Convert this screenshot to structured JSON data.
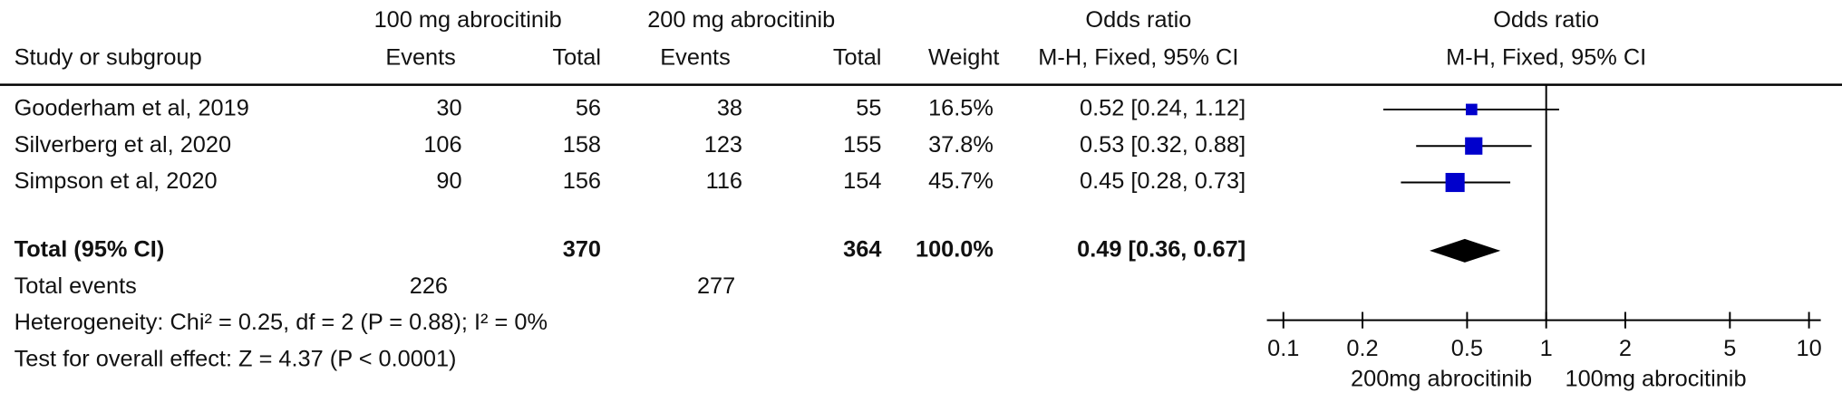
{
  "chart_data": {
    "type": "forest",
    "column_groups": [
      "100 mg abrocitinib",
      "200 mg abrocitinib",
      "Odds ratio"
    ],
    "columns": [
      "Study or subgroup",
      "Events",
      "Total",
      "Events",
      "Total",
      "Weight",
      "M-H, Fixed, 95% CI"
    ],
    "plot_title": "Odds ratio",
    "plot_subtitle": "M-H, Fixed, 95% CI",
    "studies": [
      {
        "name": "Gooderham et al, 2019",
        "events1": 30,
        "total1": 56,
        "events2": 38,
        "total2": 55,
        "weight": 16.5,
        "weight_label": "16.5%",
        "or": 0.52,
        "ci": [
          0.24,
          1.12
        ],
        "ci_label": "0.52 [0.24, 1.12]"
      },
      {
        "name": "Silverberg et al, 2020",
        "events1": 106,
        "total1": 158,
        "events2": 123,
        "total2": 155,
        "weight": 37.8,
        "weight_label": "37.8%",
        "or": 0.53,
        "ci": [
          0.32,
          0.88
        ],
        "ci_label": "0.53 [0.32, 0.88]"
      },
      {
        "name": "Simpson et al, 2020",
        "events1": 90,
        "total1": 156,
        "events2": 116,
        "total2": 154,
        "weight": 45.7,
        "weight_label": "45.7%",
        "or": 0.45,
        "ci": [
          0.28,
          0.73
        ],
        "ci_label": "0.45 [0.28, 0.73]"
      }
    ],
    "total": {
      "name": "Total (95% CI)",
      "total1": 370,
      "total2": 364,
      "weight": 100,
      "weight_label": "100.0%",
      "or": 0.49,
      "ci": [
        0.36,
        0.67
      ],
      "ci_label": "0.49 [0.36, 0.67]"
    },
    "total_events": {
      "name": "Total events",
      "events1": 226,
      "events2": 277
    },
    "heterogeneity": "Heterogeneity: Chi² = 0.25, df = 2 (P = 0.88); I² = 0%",
    "overall_effect": "Test for overall effect: Z = 4.37 (P < 0.0001)",
    "log_scale": true,
    "xlim": [
      0.1,
      10
    ],
    "xticks": [
      0.1,
      0.2,
      0.5,
      1,
      2,
      5,
      10
    ],
    "reference_line": 1,
    "x_label_left": "200mg abrocitinib",
    "x_label_right": "100mg abrocitinib",
    "square_color": "#0000cc",
    "diamond_color": "#000000"
  }
}
